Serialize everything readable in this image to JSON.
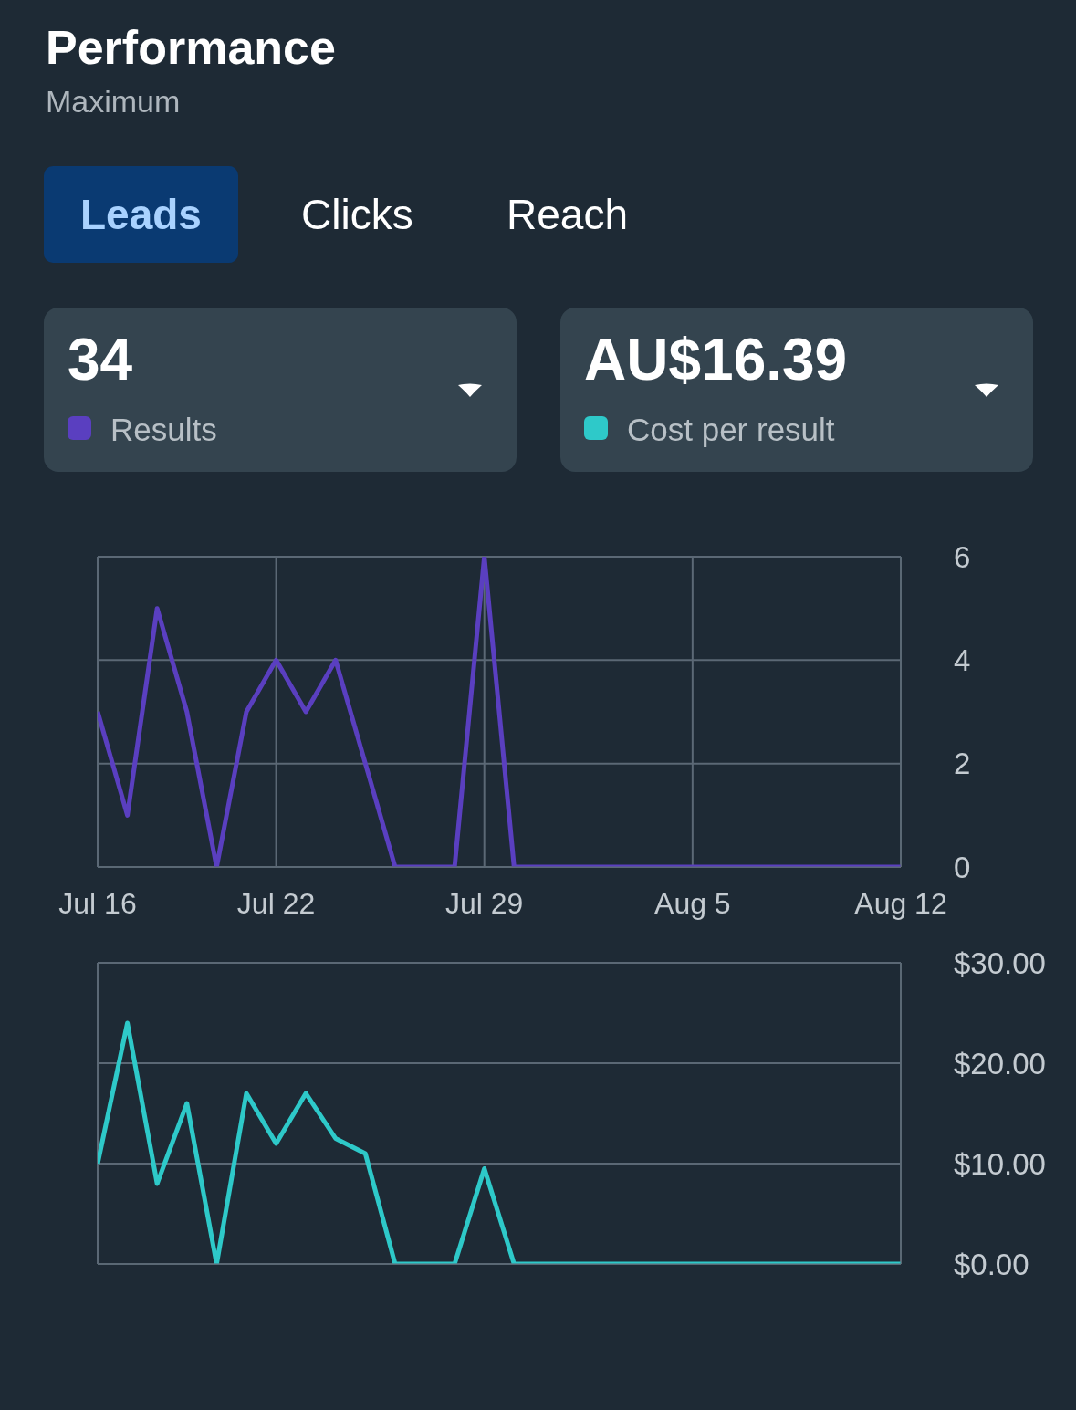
{
  "chart_data": [
    {
      "type": "other",
      "title": "Performance",
      "subtitle": "Maximum",
      "annotations": [
        "Leads",
        "Clicks",
        "Reach",
        "34",
        "Results",
        "AU$16.39",
        "Cost per result"
      ]
    },
    {
      "type": "line",
      "x": [
        "--07-16",
        "--07-17",
        "--07-18",
        "--07-19",
        "--07-20",
        "--07-21",
        "--07-22",
        "--07-23",
        "--07-24",
        "--07-25",
        "--07-26",
        "--07-27",
        "--07-28",
        "--07-29",
        "--07-30",
        "--07-31",
        "--08-01",
        "--08-02",
        "--08-03",
        "--08-04",
        "--08-05",
        "--08-06",
        "--08-07",
        "--08-08",
        "--08-09",
        "--08-10",
        "--08-11",
        "--08-12"
      ],
      "series": [
        {
          "color": "#5a3fc0",
          "values": [
            3,
            1,
            5,
            3,
            0,
            3,
            4,
            3,
            4,
            2,
            0,
            0,
            0,
            6,
            0,
            0,
            0,
            0,
            0,
            0,
            0,
            0,
            0,
            0,
            0,
            0,
            0,
            0
          ]
        }
      ],
      "xlim": [
        "--07-16",
        "--08-12"
      ],
      "xticks": [
        {
          "value": "--07-16",
          "label": "Jul 16"
        },
        {
          "value": "--07-22",
          "label": "Jul 22"
        },
        {
          "value": "--07-29",
          "label": "Jul 29"
        },
        {
          "value": "--08-05",
          "label": "Aug 5"
        },
        {
          "value": "--08-12",
          "label": "Aug 12"
        }
      ],
      "ylim": [
        0,
        6
      ],
      "yticks": [
        0,
        2,
        4,
        6
      ],
      "grid": true,
      "legend": false,
      "line_style": "solid"
    },
    {
      "type": "line",
      "x": [
        "--07-16",
        "--07-17",
        "--07-18",
        "--07-19",
        "--07-20",
        "--07-21",
        "--07-22",
        "--07-23",
        "--07-24",
        "--07-25",
        "--07-26",
        "--07-27",
        "--07-28",
        "--07-29",
        "--07-30",
        "--07-31",
        "--08-01",
        "--08-02",
        "--08-03",
        "--08-04",
        "--08-05",
        "--08-06",
        "--08-07",
        "--08-08",
        "--08-09",
        "--08-10",
        "--08-11",
        "--08-12"
      ],
      "series": [
        {
          "color": "#2ec9c9",
          "values": [
            10,
            24,
            8,
            16,
            0,
            17,
            12,
            17,
            12.5,
            11,
            0,
            0,
            0,
            9.5,
            0,
            0,
            0,
            0,
            0,
            0,
            0,
            0,
            0,
            0,
            0,
            0,
            0,
            0
          ]
        }
      ],
      "xlim": [
        "--07-16",
        "--08-12"
      ],
      "xticks": [
        {
          "value": "--07-16",
          "label": null
        },
        {
          "value": "--07-22",
          "label": null
        },
        {
          "value": "--07-29",
          "label": null
        },
        {
          "value": "--08-05",
          "label": null
        },
        {
          "value": "--08-12",
          "label": null
        }
      ],
      "ylim": [
        0,
        30
      ],
      "yticks": [
        {
          "value": 0,
          "label": "$0.00"
        },
        {
          "value": 10,
          "label": "$10.00"
        },
        {
          "value": 20,
          "label": "$20.00"
        },
        {
          "value": 30,
          "label": "$30.00"
        }
      ],
      "grid": true,
      "legend": false,
      "line_style": "solid",
      "tick_labels": "y"
    }
  ]
}
